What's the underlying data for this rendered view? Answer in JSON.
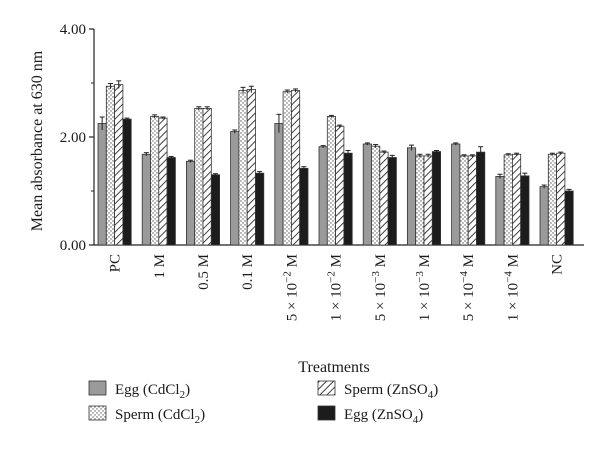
{
  "chart_data": {
    "type": "bar",
    "ylabel": "Mean absorbance at 630 nm",
    "xlabel": "Treatments",
    "ylim": [
      0,
      4
    ],
    "yticks": [
      "0.00",
      "2.00",
      "4.00"
    ],
    "categories": [
      {
        "label": "PC",
        "sup": ""
      },
      {
        "label": "1 M",
        "sup": ""
      },
      {
        "label": "0.5 M",
        "sup": ""
      },
      {
        "label": "0.1 M",
        "sup": ""
      },
      {
        "label": "5 × 10",
        "sup": "−2",
        "unit": " M"
      },
      {
        "label": "1 × 10",
        "sup": "−2",
        "unit": " M"
      },
      {
        "label": "5 × 10",
        "sup": "−3",
        "unit": " M"
      },
      {
        "label": "1 × 10",
        "sup": "−3",
        "unit": " M"
      },
      {
        "label": "5 × 10",
        "sup": "−4",
        "unit": " M"
      },
      {
        "label": "1 × 10",
        "sup": "−4",
        "unit": " M"
      },
      {
        "label": "NC",
        "sup": ""
      }
    ],
    "series": [
      {
        "name": "Egg (CdCl",
        "sub": "2",
        "tail": ")",
        "pattern": "gray",
        "values": [
          2.25,
          1.68,
          1.55,
          2.1,
          2.25,
          1.82,
          1.87,
          1.8,
          1.87,
          1.27,
          1.08
        ],
        "errors": [
          0.12,
          0.03,
          0.02,
          0.03,
          0.17,
          0.02,
          0.02,
          0.05,
          0.02,
          0.04,
          0.03
        ]
      },
      {
        "name": "Sperm (CdCl",
        "sub": "2",
        "tail": ")",
        "pattern": "dots",
        "values": [
          2.94,
          2.38,
          2.53,
          2.86,
          2.84,
          2.38,
          1.83,
          1.65,
          1.65,
          1.67,
          1.68
        ],
        "errors": [
          0.05,
          0.03,
          0.03,
          0.06,
          0.03,
          0.02,
          0.03,
          0.03,
          0.02,
          0.02,
          0.02
        ]
      },
      {
        "name": "Sperm (ZnSO",
        "sub": "4",
        "tail": ")",
        "pattern": "hatch",
        "values": [
          2.97,
          2.35,
          2.53,
          2.88,
          2.86,
          2.2,
          1.72,
          1.65,
          1.65,
          1.68,
          1.7
        ],
        "errors": [
          0.07,
          0.02,
          0.03,
          0.06,
          0.03,
          0.02,
          0.02,
          0.03,
          0.02,
          0.02,
          0.02
        ]
      },
      {
        "name": "Egg (ZnSO",
        "sub": "4",
        "tail": ")",
        "pattern": "black",
        "values": [
          2.33,
          1.62,
          1.3,
          1.33,
          1.42,
          1.7,
          1.62,
          1.73,
          1.72,
          1.28,
          1.0
        ],
        "errors": [
          0.02,
          0.02,
          0.02,
          0.03,
          0.03,
          0.05,
          0.04,
          0.02,
          0.1,
          0.05,
          0.03
        ]
      }
    ],
    "legend_position": "bottom",
    "grid": false
  }
}
